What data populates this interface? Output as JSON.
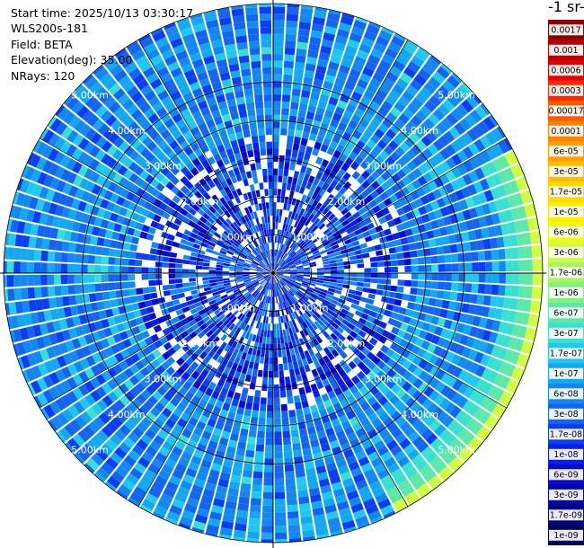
{
  "header": {
    "start_time": "Start time: 2025/10/13 03:30:17",
    "instrument": "WLS200s-181",
    "field": "Field: BETA",
    "elevation": "Elevation(deg): 35.00",
    "nrays": "NRays: 120"
  },
  "colorbar": {
    "title": "-1 sr-",
    "ticks": [
      "0.0017",
      "0.001",
      "0.0006",
      "0.0003",
      "0.00017",
      "0.0001",
      "6e-05",
      "3e-05",
      "1.7e-05",
      "1e-05",
      "6e-06",
      "3e-06",
      "1.7e-06",
      "1e-06",
      "6e-07",
      "3e-07",
      "1.7e-07",
      "1e-07",
      "6e-08",
      "3e-08",
      "1.7e-08",
      "1e-08",
      "6e-09",
      "3e-09",
      "1.7e-09",
      "1e-09"
    ],
    "colors": [
      "#8a0000",
      "#b80000",
      "#e40000",
      "#ff2800",
      "#ff5a00",
      "#ff8200",
      "#ffa000",
      "#ffbc00",
      "#ffd800",
      "#ffee00",
      "#f0fa10",
      "#d2fa40",
      "#a8f460",
      "#80f080",
      "#5ce8a8",
      "#38e0d0",
      "#20c8f0",
      "#14a8f0",
      "#1488f0",
      "#1464f0",
      "#0a3ef0",
      "#0a20e0",
      "#0a0acc",
      "#0606a8",
      "#040480",
      "#02025a"
    ]
  },
  "chart_data": {
    "type": "heatmap",
    "subtype": "polar-ppi",
    "field": "BETA",
    "elevation_deg": 35.0,
    "n_rays": 120,
    "range_rings_km": [
      1,
      2,
      3,
      4,
      5
    ],
    "ring_labels": [
      "1.00km",
      "2.00km",
      "3.00km",
      "4.00km",
      "5.00km"
    ],
    "max_range_km": 5.6,
    "color_scale": "log",
    "value_range": [
      1e-09,
      0.0017
    ],
    "typical_value": 6e-08,
    "inner_region_value": 1e-08,
    "edge_enhanced_sector": "east, outer edge (~1.7e-07 to 1.7e-06)"
  }
}
